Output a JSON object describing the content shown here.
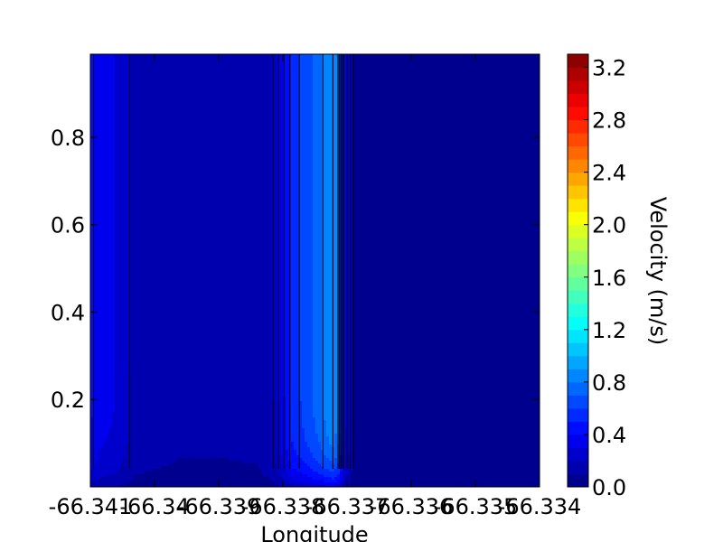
{
  "chart_data": {
    "type": "heatmap",
    "title": "",
    "xlabel": "Longitude",
    "ylabel": "",
    "x_tick_labels": [
      "-66.341",
      "-66.34",
      "-66.339",
      "-66.338",
      "-66.337",
      "-66.336",
      "-66.335",
      "-66.334"
    ],
    "x_tick_values": [
      -66.341,
      -66.34,
      -66.339,
      -66.338,
      -66.337,
      -66.336,
      -66.335,
      -66.334
    ],
    "y_tick_labels": [
      "0.2",
      "0.4",
      "0.6",
      "0.8"
    ],
    "y_tick_values": [
      0.2,
      0.4,
      0.6,
      0.8
    ],
    "xlim": [
      -66.341,
      -66.334
    ],
    "ylim": [
      0.0,
      0.99
    ],
    "colorbar": {
      "label": "Velocity (m/s)",
      "ticks": [
        "0.0",
        "0.4",
        "0.8",
        "1.2",
        "1.6",
        "2.0",
        "2.4",
        "2.8",
        "3.2"
      ],
      "tick_values": [
        0.0,
        0.4,
        0.8,
        1.2,
        1.6,
        2.0,
        2.4,
        2.8,
        3.2
      ],
      "range": [
        0.0,
        3.3
      ],
      "levels": 33,
      "colormap": "jet"
    },
    "profile": {
      "longitude": [
        -66.341,
        -66.3409,
        -66.34085,
        -66.3406,
        -66.3403,
        -66.3396,
        -66.339,
        -66.3384,
        -66.33815,
        -66.338,
        -66.33785,
        -66.3377,
        -66.33755,
        -66.3374,
        -66.3373,
        -66.33722,
        -66.33714,
        -66.33705,
        -66.3369,
        -66.3366,
        -66.3363,
        -66.3355,
        -66.3345,
        -66.334
      ],
      "velocity": [
        0.42,
        0.38,
        0.34,
        0.3,
        0.16,
        0.12,
        0.12,
        0.13,
        0.2,
        0.38,
        0.55,
        0.62,
        0.7,
        0.78,
        0.86,
        0.9,
        0.8,
        0.4,
        0.1,
        0.04,
        0.06,
        0.02,
        0.02,
        0.02
      ]
    },
    "grid": false,
    "legend": "colorbar-right"
  }
}
